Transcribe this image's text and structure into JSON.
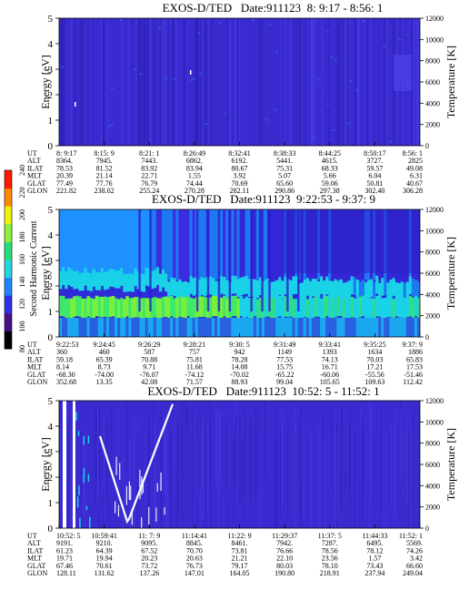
{
  "chart_data": {
    "type": "heatmap",
    "colorbar": {
      "label": "Second Harmonic Current",
      "ticks": [
        "80",
        "100",
        "120",
        "140",
        "160",
        "180",
        "200",
        "220",
        "240"
      ],
      "colors": [
        "#000000",
        "#4a0f87",
        "#3030e6",
        "#1f86ff",
        "#22d6e0",
        "#25e07a",
        "#8ef03a",
        "#f3f00a",
        "#ff8a00",
        "#ff1a00"
      ]
    },
    "panels": [
      {
        "title": "EXOS-D/TED   Date:911123  8: 9:17 - 8:56: 1",
        "ylabel": "Energy [eV]",
        "y2label": "Temperature [K]",
        "yticks": [
          "0",
          "1",
          "2",
          "3",
          "4",
          "5"
        ],
        "y2ticks": [
          "0",
          "2000",
          "4000",
          "6000",
          "8000",
          "10000",
          "12000"
        ],
        "ylim": [
          0,
          5
        ],
        "y2lim": [
          0,
          12000
        ],
        "rows": [
          {
            "name": "UT",
            "values": [
              "8: 9:17",
              "8:15: 9",
              "8:21: 1",
              "8:26:49",
              "8:32:41",
              "8:38:33",
              "8:44:25",
              "8:50:17",
              "8:56: 1"
            ]
          },
          {
            "name": "ALT",
            "values": [
              "8364.",
              "7945.",
              "7443.",
              "6862.",
              "6192.",
              "5441.",
              "4615.",
              "3727.",
              "2825"
            ]
          },
          {
            "name": "ILAT",
            "values": [
              "78.53",
              "81.52",
              "83.92",
              "83.94",
              "80.67",
              "75.31",
              "68.33",
              "59.57",
              "49.08"
            ]
          },
          {
            "name": "MLT",
            "values": [
              "20.39",
              "21.14",
              "22.71",
              "1.55",
              "3.92",
              "5.07",
              "5.66",
              "6.04",
              "6.31"
            ]
          },
          {
            "name": "GLAT",
            "values": [
              "77.49",
              "77.76",
              "76.79",
              "74.44",
              "70.69",
              "65.60",
              "59.06",
              "50.81",
              "40.67"
            ]
          },
          {
            "name": "GLON",
            "values": [
              "221.82",
              "238.02",
              "255.24",
              "270.28",
              "282.11",
              "290.86",
              "297.38",
              "302.40",
              "306.28"
            ]
          }
        ]
      },
      {
        "title": "EXOS-D/TED   Date:911123  9:22:53 - 9:37: 9",
        "ylabel": "Energy [eV]",
        "y2label": "Temperature [K]",
        "yticks": [
          "0",
          "1",
          "2",
          "3",
          "4",
          "5"
        ],
        "y2ticks": [
          "0",
          "2000",
          "4000",
          "6000",
          "8000",
          "10000",
          "12000"
        ],
        "ylim": [
          0,
          5
        ],
        "y2lim": [
          0,
          12000
        ],
        "rows": [
          {
            "name": "UT",
            "values": [
              "9:22:53",
              "9:24:45",
              "9:26:29",
              "9:28:21",
              "9:30: 5",
              "9:31:49",
              "9:33:41",
              "9:35:25",
              "9:37: 9"
            ]
          },
          {
            "name": "ALT",
            "values": [
              "360",
              "460",
              "587",
              "757",
              "942",
              "1149",
              "1393",
              "1634",
              "1886"
            ]
          },
          {
            "name": "ILAT",
            "values": [
              "59.18",
              "65.39",
              "70.88",
              "75.81",
              "78.28",
              "77.53",
              "74.13",
              "70.03",
              "65.83"
            ]
          },
          {
            "name": "MLT",
            "values": [
              "8.14",
              "8.73",
              "9.71",
              "11.68",
              "14.08",
              "15.75",
              "16.71",
              "17.21",
              "17.53"
            ]
          },
          {
            "name": "GLAT",
            "values": [
              "-68.30",
              "-74.00",
              "-76.07",
              "-74.12",
              "-70.02",
              "-65.22",
              "-60.06",
              "-55.56",
              "-51.46"
            ]
          },
          {
            "name": "GLON",
            "values": [
              "352.68",
              "13.35",
              "42.08",
              "71.57",
              "88.93",
              "99.04",
              "105.65",
              "109.63",
              "112.42"
            ]
          }
        ]
      },
      {
        "title": "EXOS-D/TED   Date:911123  10:52: 5 - 11:52: 1",
        "ylabel": "Energy [eV]",
        "y2label": "Temperature [K]",
        "yticks": [
          "0",
          "1",
          "2",
          "3",
          "4",
          "5"
        ],
        "y2ticks": [
          "0",
          "2000",
          "4000",
          "6000",
          "8000",
          "10000",
          "12000"
        ],
        "ylim": [
          0,
          5
        ],
        "y2lim": [
          0,
          12000
        ],
        "rows": [
          {
            "name": "UT",
            "values": [
              "10:52: 5",
              "10:59:41",
              "11: 7: 9",
              "11:14:41",
              "11:22: 9",
              "11:29:37",
              "11:37: 5",
              "11:44:33",
              "11:52: 1"
            ]
          },
          {
            "name": "ALT",
            "values": [
              "9191.",
              "9210.",
              "9095.",
              "8845.",
              "8461.",
              "7942.",
              "7287.",
              "6495.",
              "5569."
            ]
          },
          {
            "name": "ILAT",
            "values": [
              "61.23",
              "64.39",
              "67.52",
              "70.70",
              "73.81",
              "76.66",
              "78.56",
              "78.12",
              "74.26"
            ]
          },
          {
            "name": "MLT",
            "values": [
              "19.71",
              "19.94",
              "20.23",
              "20.63",
              "21.21",
              "22.10",
              "23.56",
              "1.57",
              "3.42"
            ]
          },
          {
            "name": "GLAT",
            "values": [
              "67.46",
              "70.61",
              "73.72",
              "76.73",
              "79.17",
              "80.03",
              "78.10",
              "73.43",
              "66.60"
            ]
          },
          {
            "name": "GLON",
            "values": [
              "128.11",
              "131.62",
              "137.26",
              "147.01",
              "164.05",
              "190.80",
              "218.91",
              "237.94",
              "249.04"
            ]
          }
        ]
      }
    ]
  }
}
